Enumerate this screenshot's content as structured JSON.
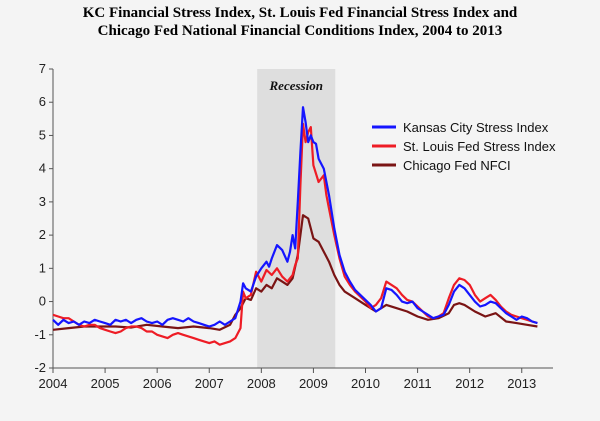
{
  "title": {
    "line1": "KC Financial Stress Index, St. Louis Fed Financial Stress Index and",
    "line2": "Chicago Fed National Financial Conditions Index, 2004 to 2013"
  },
  "chart_data": {
    "type": "line",
    "title": "KC Financial Stress Index, St. Louis Fed Financial Stress Index and Chicago Fed National Financial Conditions Index, 2004 to 2013",
    "xlim": [
      2004,
      2013.6
    ],
    "ylim": [
      -2,
      7
    ],
    "x_ticks": [
      "2004",
      "2005",
      "2006",
      "2007",
      "2008",
      "2009",
      "2010",
      "2011",
      "2012",
      "2013"
    ],
    "y_ticks": [
      "-2",
      "-1",
      "0",
      "1",
      "2",
      "3",
      "4",
      "5",
      "6",
      "7"
    ],
    "grid": false,
    "legend_position": "top-right",
    "recession": {
      "label": "Recession",
      "start": 2007.92,
      "end": 2009.42,
      "color": "#dedede"
    },
    "series": [
      {
        "name": "Kansas City Stress Index",
        "color": "#1515ff",
        "points": [
          [
            2004.0,
            -0.55
          ],
          [
            2004.1,
            -0.7
          ],
          [
            2004.2,
            -0.55
          ],
          [
            2004.3,
            -0.65
          ],
          [
            2004.4,
            -0.6
          ],
          [
            2004.5,
            -0.7
          ],
          [
            2004.6,
            -0.6
          ],
          [
            2004.7,
            -0.65
          ],
          [
            2004.8,
            -0.55
          ],
          [
            2004.9,
            -0.6
          ],
          [
            2005.0,
            -0.65
          ],
          [
            2005.1,
            -0.7
          ],
          [
            2005.2,
            -0.55
          ],
          [
            2005.3,
            -0.6
          ],
          [
            2005.4,
            -0.55
          ],
          [
            2005.5,
            -0.65
          ],
          [
            2005.6,
            -0.55
          ],
          [
            2005.7,
            -0.5
          ],
          [
            2005.8,
            -0.6
          ],
          [
            2005.9,
            -0.65
          ],
          [
            2006.0,
            -0.6
          ],
          [
            2006.1,
            -0.7
          ],
          [
            2006.2,
            -0.55
          ],
          [
            2006.3,
            -0.5
          ],
          [
            2006.4,
            -0.55
          ],
          [
            2006.5,
            -0.6
          ],
          [
            2006.6,
            -0.5
          ],
          [
            2006.7,
            -0.6
          ],
          [
            2006.8,
            -0.65
          ],
          [
            2006.9,
            -0.7
          ],
          [
            2007.0,
            -0.75
          ],
          [
            2007.1,
            -0.7
          ],
          [
            2007.2,
            -0.6
          ],
          [
            2007.3,
            -0.7
          ],
          [
            2007.4,
            -0.6
          ],
          [
            2007.5,
            -0.5
          ],
          [
            2007.6,
            0.0
          ],
          [
            2007.65,
            0.55
          ],
          [
            2007.7,
            0.4
          ],
          [
            2007.8,
            0.3
          ],
          [
            2007.9,
            0.75
          ],
          [
            2008.0,
            1.0
          ],
          [
            2008.1,
            1.2
          ],
          [
            2008.15,
            1.05
          ],
          [
            2008.2,
            1.3
          ],
          [
            2008.3,
            1.7
          ],
          [
            2008.4,
            1.55
          ],
          [
            2008.5,
            1.2
          ],
          [
            2008.55,
            1.5
          ],
          [
            2008.6,
            2.0
          ],
          [
            2008.65,
            1.6
          ],
          [
            2008.7,
            3.0
          ],
          [
            2008.75,
            4.5
          ],
          [
            2008.8,
            5.85
          ],
          [
            2008.85,
            5.4
          ],
          [
            2008.9,
            4.8
          ],
          [
            2008.95,
            5.0
          ],
          [
            2009.0,
            4.8
          ],
          [
            2009.05,
            4.75
          ],
          [
            2009.1,
            4.3
          ],
          [
            2009.2,
            4.0
          ],
          [
            2009.25,
            3.6
          ],
          [
            2009.3,
            3.2
          ],
          [
            2009.4,
            2.2
          ],
          [
            2009.5,
            1.4
          ],
          [
            2009.6,
            0.9
          ],
          [
            2009.7,
            0.6
          ],
          [
            2009.8,
            0.35
          ],
          [
            2009.9,
            0.2
          ],
          [
            2010.0,
            0.05
          ],
          [
            2010.1,
            -0.1
          ],
          [
            2010.2,
            -0.3
          ],
          [
            2010.3,
            -0.2
          ],
          [
            2010.4,
            0.4
          ],
          [
            2010.5,
            0.35
          ],
          [
            2010.6,
            0.2
          ],
          [
            2010.7,
            0.0
          ],
          [
            2010.8,
            -0.05
          ],
          [
            2010.9,
            0.0
          ],
          [
            2011.0,
            -0.2
          ],
          [
            2011.1,
            -0.3
          ],
          [
            2011.2,
            -0.4
          ],
          [
            2011.3,
            -0.5
          ],
          [
            2011.4,
            -0.45
          ],
          [
            2011.5,
            -0.4
          ],
          [
            2011.6,
            -0.1
          ],
          [
            2011.7,
            0.3
          ],
          [
            2011.8,
            0.5
          ],
          [
            2011.9,
            0.4
          ],
          [
            2012.0,
            0.2
          ],
          [
            2012.1,
            0.0
          ],
          [
            2012.2,
            -0.15
          ],
          [
            2012.3,
            -0.1
          ],
          [
            2012.4,
            0.0
          ],
          [
            2012.5,
            -0.05
          ],
          [
            2012.6,
            -0.2
          ],
          [
            2012.7,
            -0.35
          ],
          [
            2012.8,
            -0.45
          ],
          [
            2012.9,
            -0.55
          ],
          [
            2013.0,
            -0.45
          ],
          [
            2013.1,
            -0.5
          ],
          [
            2013.2,
            -0.6
          ],
          [
            2013.3,
            -0.65
          ]
        ]
      },
      {
        "name": "St. Louis Fed Stress Index",
        "color": "#ee1c25",
        "points": [
          [
            2004.0,
            -0.4
          ],
          [
            2004.1,
            -0.45
          ],
          [
            2004.2,
            -0.5
          ],
          [
            2004.3,
            -0.5
          ],
          [
            2004.4,
            -0.6
          ],
          [
            2004.5,
            -0.7
          ],
          [
            2004.6,
            -0.75
          ],
          [
            2004.7,
            -0.7
          ],
          [
            2004.8,
            -0.7
          ],
          [
            2004.9,
            -0.8
          ],
          [
            2005.0,
            -0.85
          ],
          [
            2005.1,
            -0.9
          ],
          [
            2005.2,
            -0.95
          ],
          [
            2005.3,
            -0.9
          ],
          [
            2005.4,
            -0.8
          ],
          [
            2005.5,
            -0.75
          ],
          [
            2005.6,
            -0.75
          ],
          [
            2005.7,
            -0.8
          ],
          [
            2005.8,
            -0.9
          ],
          [
            2005.9,
            -0.9
          ],
          [
            2006.0,
            -1.0
          ],
          [
            2006.1,
            -1.05
          ],
          [
            2006.2,
            -1.1
          ],
          [
            2006.3,
            -1.0
          ],
          [
            2006.4,
            -0.95
          ],
          [
            2006.5,
            -1.0
          ],
          [
            2006.6,
            -1.05
          ],
          [
            2006.7,
            -1.1
          ],
          [
            2006.8,
            -1.15
          ],
          [
            2006.9,
            -1.2
          ],
          [
            2007.0,
            -1.25
          ],
          [
            2007.1,
            -1.2
          ],
          [
            2007.2,
            -1.3
          ],
          [
            2007.3,
            -1.25
          ],
          [
            2007.4,
            -1.2
          ],
          [
            2007.5,
            -1.1
          ],
          [
            2007.6,
            -0.8
          ],
          [
            2007.65,
            0.3
          ],
          [
            2007.7,
            0.1
          ],
          [
            2007.8,
            0.2
          ],
          [
            2007.9,
            0.9
          ],
          [
            2008.0,
            0.6
          ],
          [
            2008.1,
            0.95
          ],
          [
            2008.2,
            0.8
          ],
          [
            2008.3,
            1.0
          ],
          [
            2008.4,
            0.75
          ],
          [
            2008.5,
            0.6
          ],
          [
            2008.6,
            0.8
          ],
          [
            2008.65,
            1.1
          ],
          [
            2008.7,
            1.3
          ],
          [
            2008.75,
            3.5
          ],
          [
            2008.8,
            5.35
          ],
          [
            2008.85,
            4.8
          ],
          [
            2008.9,
            5.1
          ],
          [
            2008.95,
            5.25
          ],
          [
            2009.0,
            4.1
          ],
          [
            2009.1,
            3.6
          ],
          [
            2009.2,
            3.8
          ],
          [
            2009.25,
            3.2
          ],
          [
            2009.3,
            2.8
          ],
          [
            2009.4,
            2.0
          ],
          [
            2009.5,
            1.3
          ],
          [
            2009.6,
            0.75
          ],
          [
            2009.7,
            0.5
          ],
          [
            2009.8,
            0.3
          ],
          [
            2009.9,
            0.15
          ],
          [
            2010.0,
            0.0
          ],
          [
            2010.1,
            -0.2
          ],
          [
            2010.2,
            -0.1
          ],
          [
            2010.3,
            0.1
          ],
          [
            2010.4,
            0.6
          ],
          [
            2010.5,
            0.5
          ],
          [
            2010.6,
            0.4
          ],
          [
            2010.7,
            0.2
          ],
          [
            2010.8,
            0.05
          ],
          [
            2010.9,
            0.0
          ],
          [
            2011.0,
            -0.15
          ],
          [
            2011.1,
            -0.3
          ],
          [
            2011.2,
            -0.45
          ],
          [
            2011.3,
            -0.5
          ],
          [
            2011.4,
            -0.45
          ],
          [
            2011.5,
            -0.35
          ],
          [
            2011.6,
            0.1
          ],
          [
            2011.7,
            0.5
          ],
          [
            2011.8,
            0.7
          ],
          [
            2011.9,
            0.65
          ],
          [
            2012.0,
            0.5
          ],
          [
            2012.1,
            0.2
          ],
          [
            2012.2,
            0.0
          ],
          [
            2012.3,
            0.1
          ],
          [
            2012.4,
            0.2
          ],
          [
            2012.5,
            0.05
          ],
          [
            2012.6,
            -0.15
          ],
          [
            2012.7,
            -0.3
          ],
          [
            2012.8,
            -0.4
          ],
          [
            2012.9,
            -0.45
          ],
          [
            2013.0,
            -0.5
          ],
          [
            2013.1,
            -0.55
          ],
          [
            2013.2,
            -0.6
          ],
          [
            2013.3,
            -0.65
          ]
        ]
      },
      {
        "name": "Chicago Fed NFCI",
        "color": "#7a1414",
        "points": [
          [
            2004.0,
            -0.85
          ],
          [
            2004.3,
            -0.8
          ],
          [
            2004.6,
            -0.75
          ],
          [
            2004.9,
            -0.75
          ],
          [
            2005.2,
            -0.75
          ],
          [
            2005.5,
            -0.78
          ],
          [
            2005.8,
            -0.7
          ],
          [
            2006.1,
            -0.75
          ],
          [
            2006.4,
            -0.8
          ],
          [
            2006.7,
            -0.75
          ],
          [
            2007.0,
            -0.8
          ],
          [
            2007.2,
            -0.85
          ],
          [
            2007.4,
            -0.7
          ],
          [
            2007.5,
            -0.4
          ],
          [
            2007.6,
            -0.2
          ],
          [
            2007.7,
            0.1
          ],
          [
            2007.8,
            0.05
          ],
          [
            2007.9,
            0.4
          ],
          [
            2008.0,
            0.3
          ],
          [
            2008.1,
            0.5
          ],
          [
            2008.2,
            0.4
          ],
          [
            2008.3,
            0.7
          ],
          [
            2008.4,
            0.6
          ],
          [
            2008.5,
            0.5
          ],
          [
            2008.6,
            0.7
          ],
          [
            2008.7,
            1.4
          ],
          [
            2008.8,
            2.6
          ],
          [
            2008.9,
            2.5
          ],
          [
            2009.0,
            1.9
          ],
          [
            2009.1,
            1.8
          ],
          [
            2009.2,
            1.5
          ],
          [
            2009.3,
            1.2
          ],
          [
            2009.4,
            0.8
          ],
          [
            2009.5,
            0.5
          ],
          [
            2009.6,
            0.3
          ],
          [
            2009.8,
            0.1
          ],
          [
            2010.0,
            -0.1
          ],
          [
            2010.2,
            -0.3
          ],
          [
            2010.4,
            -0.1
          ],
          [
            2010.6,
            -0.2
          ],
          [
            2010.8,
            -0.3
          ],
          [
            2011.0,
            -0.45
          ],
          [
            2011.2,
            -0.55
          ],
          [
            2011.4,
            -0.5
          ],
          [
            2011.6,
            -0.35
          ],
          [
            2011.7,
            -0.1
          ],
          [
            2011.8,
            -0.05
          ],
          [
            2011.9,
            -0.1
          ],
          [
            2012.1,
            -0.3
          ],
          [
            2012.3,
            -0.45
          ],
          [
            2012.5,
            -0.35
          ],
          [
            2012.7,
            -0.6
          ],
          [
            2012.9,
            -0.65
          ],
          [
            2013.1,
            -0.7
          ],
          [
            2013.3,
            -0.75
          ]
        ]
      }
    ]
  }
}
